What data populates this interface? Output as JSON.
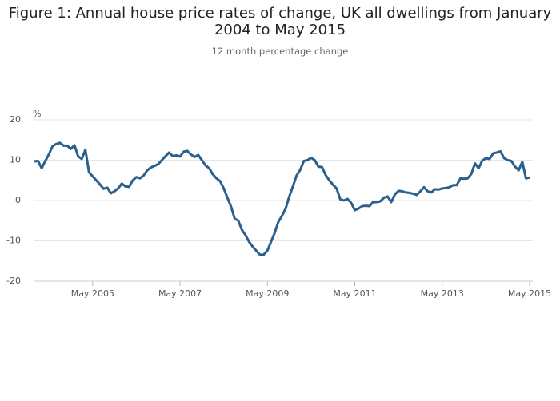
{
  "chart_data": {
    "type": "line",
    "title": "Figure 1: Annual house price rates of change, UK all dwellings from January 2004 to May 2015",
    "subtitle": "12 month percentage change",
    "ylabel": "%",
    "x": [
      "2004-01",
      "2004-02",
      "2004-03",
      "2004-04",
      "2004-05",
      "2004-06",
      "2004-07",
      "2004-08",
      "2004-09",
      "2004-10",
      "2004-11",
      "2004-12",
      "2005-01",
      "2005-02",
      "2005-03",
      "2005-04",
      "2005-05",
      "2005-06",
      "2005-07",
      "2005-08",
      "2005-09",
      "2005-10",
      "2005-11",
      "2005-12",
      "2006-01",
      "2006-02",
      "2006-03",
      "2006-04",
      "2006-05",
      "2006-06",
      "2006-07",
      "2006-08",
      "2006-09",
      "2006-10",
      "2006-11",
      "2006-12",
      "2007-01",
      "2007-02",
      "2007-03",
      "2007-04",
      "2007-05",
      "2007-06",
      "2007-07",
      "2007-08",
      "2007-09",
      "2007-10",
      "2007-11",
      "2007-12",
      "2008-01",
      "2008-02",
      "2008-03",
      "2008-04",
      "2008-05",
      "2008-06",
      "2008-07",
      "2008-08",
      "2008-09",
      "2008-10",
      "2008-11",
      "2008-12",
      "2009-01",
      "2009-02",
      "2009-03",
      "2009-04",
      "2009-05",
      "2009-06",
      "2009-07",
      "2009-08",
      "2009-09",
      "2009-10",
      "2009-11",
      "2009-12",
      "2010-01",
      "2010-02",
      "2010-03",
      "2010-04",
      "2010-05",
      "2010-06",
      "2010-07",
      "2010-08",
      "2010-09",
      "2010-10",
      "2010-11",
      "2010-12",
      "2011-01",
      "2011-02",
      "2011-03",
      "2011-04",
      "2011-05",
      "2011-06",
      "2011-07",
      "2011-08",
      "2011-09",
      "2011-10",
      "2011-11",
      "2011-12",
      "2012-01",
      "2012-02",
      "2012-03",
      "2012-04",
      "2012-05",
      "2012-06",
      "2012-07",
      "2012-08",
      "2012-09",
      "2012-10",
      "2012-11",
      "2012-12",
      "2013-01",
      "2013-02",
      "2013-03",
      "2013-04",
      "2013-05",
      "2013-06",
      "2013-07",
      "2013-08",
      "2013-09",
      "2013-10",
      "2013-11",
      "2013-12",
      "2014-01",
      "2014-02",
      "2014-03",
      "2014-04",
      "2014-05",
      "2014-06",
      "2014-07",
      "2014-08",
      "2014-09",
      "2014-10",
      "2014-11",
      "2014-12",
      "2015-01",
      "2015-02",
      "2015-03",
      "2015-04",
      "2015-05"
    ],
    "values": [
      9.7,
      9.8,
      8.0,
      9.8,
      11.5,
      13.5,
      14.0,
      14.3,
      13.6,
      13.6,
      12.8,
      13.7,
      11.0,
      10.3,
      12.6,
      7.0,
      6.0,
      5.0,
      4.0,
      2.9,
      3.2,
      1.8,
      2.3,
      3.0,
      4.2,
      3.5,
      3.4,
      5.0,
      5.8,
      5.5,
      6.2,
      7.5,
      8.2,
      8.6,
      9.0,
      10.0,
      11.0,
      11.9,
      11.0,
      11.2,
      10.9,
      12.1,
      12.3,
      11.4,
      10.8,
      11.3,
      10.0,
      8.7,
      8.0,
      6.5,
      5.5,
      4.8,
      3.0,
      0.7,
      -1.5,
      -4.5,
      -5.0,
      -7.3,
      -8.6,
      -10.3,
      -11.5,
      -12.5,
      -13.5,
      -13.4,
      -12.4,
      -10.2,
      -8.0,
      -5.3,
      -3.8,
      -2.0,
      1.0,
      3.5,
      6.2,
      7.6,
      9.8,
      10.0,
      10.6,
      10.0,
      8.4,
      8.3,
      6.3,
      5.0,
      3.9,
      3.0,
      0.3,
      0.0,
      0.4,
      -0.6,
      -2.4,
      -2.0,
      -1.4,
      -1.3,
      -1.4,
      -0.4,
      -0.4,
      -0.2,
      0.7,
      1.0,
      -0.4,
      1.5,
      2.4,
      2.3,
      2.0,
      1.9,
      1.7,
      1.4,
      2.3,
      3.3,
      2.3,
      2.0,
      2.8,
      2.7,
      3.0,
      3.1,
      3.3,
      3.8,
      3.8,
      5.5,
      5.4,
      5.5,
      6.6,
      9.2,
      8.0,
      9.9,
      10.5,
      10.3,
      11.7,
      11.9,
      12.2,
      10.5,
      10.0,
      9.8,
      8.4,
      7.5,
      9.6,
      5.5,
      5.7
    ],
    "color": "#2a5f8e",
    "xlim": [
      "2004-01",
      "2015-05"
    ],
    "xticks": [
      {
        "value": "2005-05",
        "label": "May 2005"
      },
      {
        "value": "2007-05",
        "label": "May 2007"
      },
      {
        "value": "2009-05",
        "label": "May 2009"
      },
      {
        "value": "2011-05",
        "label": "May 2011"
      },
      {
        "value": "2013-05",
        "label": "May 2013"
      },
      {
        "value": "2015-05",
        "label": "May 2015"
      }
    ],
    "ylim": [
      -20,
      20
    ],
    "yticks": [
      20,
      10,
      0,
      -10,
      -20
    ],
    "grid": true
  }
}
